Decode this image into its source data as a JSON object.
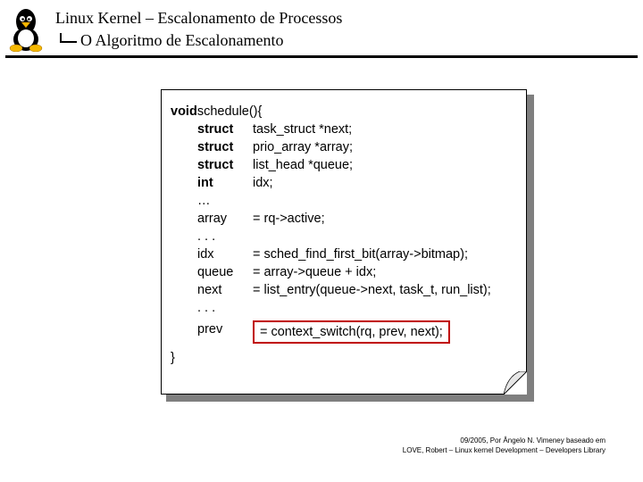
{
  "header": {
    "title1": "Linux Kernel – Escalonamento de Processos",
    "title2": "O Algoritmo de Escalonamento"
  },
  "code": {
    "sig_kw": "void",
    "sig_name": " schedule(){",
    "rows": [
      {
        "c1": "struct",
        "c1_bold": true,
        "c2": "task_struct *next;"
      },
      {
        "c1": "struct",
        "c1_bold": true,
        "c2": "prio_array *array;"
      },
      {
        "c1": "struct",
        "c1_bold": true,
        "c2": "list_head *queue;"
      },
      {
        "c1": "int",
        "c1_bold": true,
        "c2": "idx;"
      },
      {
        "c1": "…",
        "c1_bold": false,
        "c2": ""
      },
      {
        "c1": "array",
        "c1_bold": false,
        "c2": "= rq->active;"
      },
      {
        "c1": ". . .",
        "c1_bold": false,
        "c2": ""
      },
      {
        "c1": "idx",
        "c1_bold": false,
        "c2": "= sched_find_first_bit(array->bitmap);"
      },
      {
        "c1": "queue",
        "c1_bold": false,
        "c2": "= array->queue + idx;"
      },
      {
        "c1": "next",
        "c1_bold": false,
        "c2": "= list_entry(queue->next, task_t, run_list);"
      },
      {
        "c1": ". . .",
        "c1_bold": false,
        "c2": ""
      }
    ],
    "hl_row": {
      "c1": "prev",
      "c2": "= context_switch(rq, prev, next);"
    },
    "close": "}"
  },
  "footer": {
    "line1": "09/2005, Por Ângelo N. Vimeney baseado em",
    "line2": "LOVE, Robert – Linux kernel Development – Developers Library"
  },
  "colors": {
    "highlight_border": "#c00000",
    "shadow": "#7f7f7f",
    "text": "#000000",
    "bg": "#ffffff"
  }
}
